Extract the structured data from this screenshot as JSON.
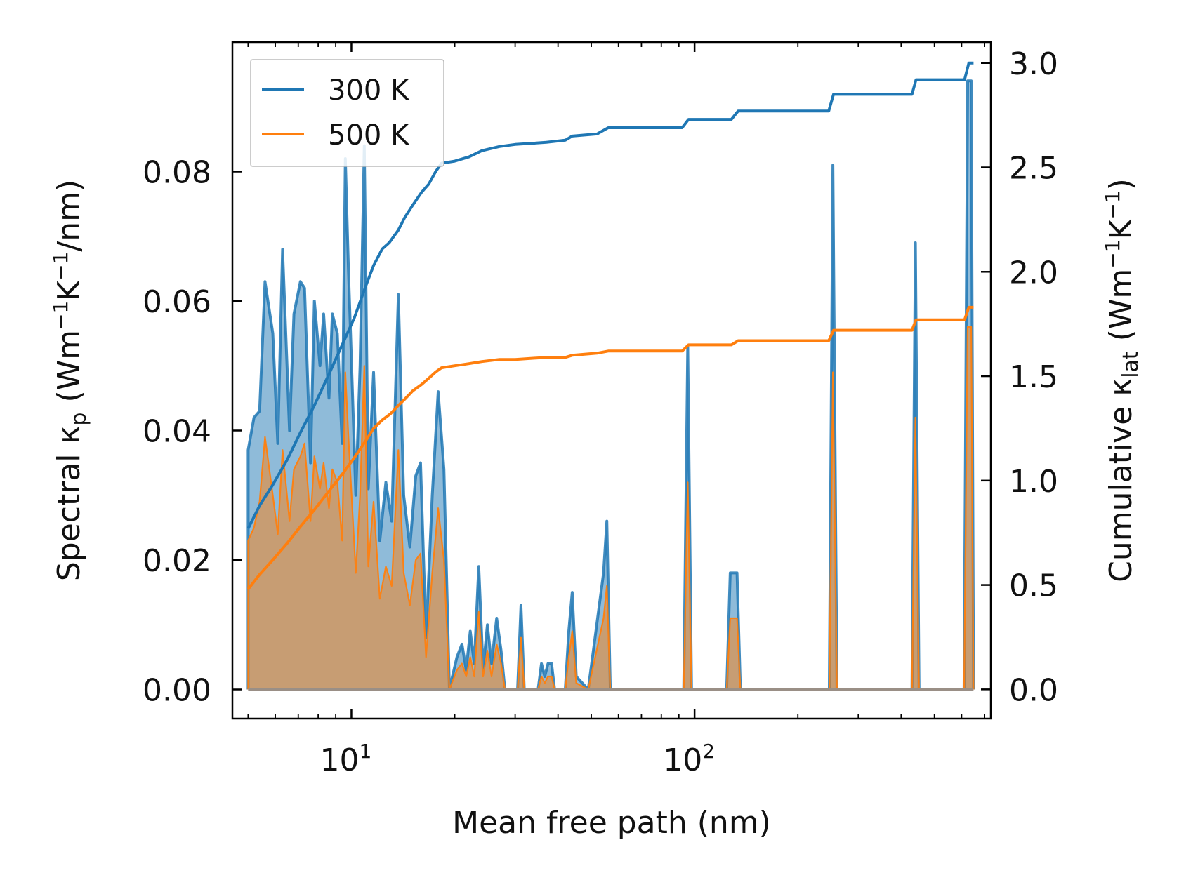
{
  "chart_data": {
    "type": "line",
    "subtype": "spectral-fill-with-cumulative-lines",
    "xlabel": "Mean free path (nm)",
    "xscale": "log",
    "xlim": [
      4.5,
      730
    ],
    "ylim_left": [
      -0.0045,
      0.1
    ],
    "ylim_right": [
      -0.14,
      3.1
    ],
    "xticks": [
      {
        "value": 10,
        "base": "10",
        "exp": "1"
      },
      {
        "value": 100,
        "base": "10",
        "exp": "2"
      }
    ],
    "yticks_left": [
      0.0,
      0.02,
      0.04,
      0.06,
      0.08
    ],
    "yticks_left_labels": [
      "0.00",
      "0.02",
      "0.04",
      "0.06",
      "0.08"
    ],
    "yticks_right": [
      0.0,
      0.5,
      1.0,
      1.5,
      2.0,
      2.5,
      3.0
    ],
    "yticks_right_labels": [
      "0.0",
      "0.5",
      "1.0",
      "1.5",
      "2.0",
      "2.5",
      "3.0"
    ],
    "ylabel_left": {
      "prefix": "Spectral κ",
      "sub": "p",
      "mid": " (Wm",
      "sup1": "−1",
      "mid2": "K",
      "sup2": "−1",
      "suffix": "/nm)"
    },
    "ylabel_right": {
      "prefix": "Cumulative κ",
      "sub": "lat",
      "mid": " (Wm",
      "sup1": "−1",
      "mid2": "K",
      "sup2": "−1",
      "suffix": ")"
    },
    "legend": {
      "position": "top-left",
      "entries": [
        "300 K",
        "500 K"
      ]
    },
    "colors": {
      "300K": "#1f77b4",
      "500K": "#ff7f0e"
    },
    "spectral_series": [
      {
        "name": "300 K",
        "points": [
          [
            5.0,
            0.0
          ],
          [
            5.0,
            0.037
          ],
          [
            5.2,
            0.042
          ],
          [
            5.4,
            0.043
          ],
          [
            5.6,
            0.063
          ],
          [
            5.9,
            0.055
          ],
          [
            6.1,
            0.038
          ],
          [
            6.3,
            0.068
          ],
          [
            6.6,
            0.04
          ],
          [
            6.8,
            0.058
          ],
          [
            7.1,
            0.063
          ],
          [
            7.3,
            0.062
          ],
          [
            7.6,
            0.035
          ],
          [
            7.8,
            0.06
          ],
          [
            8.1,
            0.05
          ],
          [
            8.3,
            0.058
          ],
          [
            8.6,
            0.045
          ],
          [
            8.8,
            0.058
          ],
          [
            9.1,
            0.055
          ],
          [
            9.4,
            0.038
          ],
          [
            9.6,
            0.082
          ],
          [
            9.8,
            0.065
          ],
          [
            10.3,
            0.03
          ],
          [
            10.6,
            0.05
          ],
          [
            10.9,
            0.084
          ],
          [
            11.2,
            0.031
          ],
          [
            11.6,
            0.049
          ],
          [
            12.1,
            0.023
          ],
          [
            12.6,
            0.032
          ],
          [
            13.1,
            0.026
          ],
          [
            13.7,
            0.061
          ],
          [
            14.2,
            0.03
          ],
          [
            14.8,
            0.022
          ],
          [
            15.4,
            0.033
          ],
          [
            15.9,
            0.035
          ],
          [
            16.5,
            0.008
          ],
          [
            17.2,
            0.03
          ],
          [
            17.9,
            0.046
          ],
          [
            18.6,
            0.034
          ],
          [
            19.3,
            0.0
          ],
          [
            20.3,
            0.005
          ],
          [
            21.0,
            0.007
          ],
          [
            21.6,
            0.003
          ],
          [
            22.2,
            0.009
          ],
          [
            22.8,
            0.004
          ],
          [
            23.5,
            0.019
          ],
          [
            24.2,
            0.003
          ],
          [
            24.9,
            0.01
          ],
          [
            25.6,
            0.004
          ],
          [
            26.5,
            0.011
          ],
          [
            27.3,
            0.006
          ],
          [
            28.0,
            0.0
          ],
          [
            30.5,
            0.0
          ],
          [
            31.2,
            0.013
          ],
          [
            31.9,
            0.0
          ],
          [
            35.0,
            0.0
          ],
          [
            35.8,
            0.004
          ],
          [
            36.6,
            0.002
          ],
          [
            37.4,
            0.004
          ],
          [
            38.3,
            0.004
          ],
          [
            39.1,
            0.0
          ],
          [
            42.0,
            0.0
          ],
          [
            43.0,
            0.009
          ],
          [
            44.0,
            0.015
          ],
          [
            45.2,
            0.002
          ],
          [
            49.0,
            0.0
          ],
          [
            54.3,
            0.018
          ],
          [
            55.5,
            0.026
          ],
          [
            56.8,
            0.0
          ],
          [
            93.0,
            0.0
          ],
          [
            95.5,
            0.053
          ],
          [
            98.0,
            0.0
          ],
          [
            124.0,
            0.0
          ],
          [
            127.0,
            0.018
          ],
          [
            130.0,
            0.018
          ],
          [
            133.0,
            0.018
          ],
          [
            136.0,
            0.0
          ],
          [
            247.0,
            0.0
          ],
          [
            253.0,
            0.081
          ],
          [
            260.0,
            0.0
          ],
          [
            430.0,
            0.0
          ],
          [
            440.0,
            0.069
          ],
          [
            451.0,
            0.0
          ],
          [
            610.0,
            0.0
          ],
          [
            625.0,
            0.094
          ],
          [
            640.0,
            0.094
          ],
          [
            650.0,
            0.0
          ]
        ]
      },
      {
        "name": "500 K",
        "points": [
          [
            5.0,
            0.0
          ],
          [
            5.0,
            0.023
          ],
          [
            5.2,
            0.025
          ],
          [
            5.4,
            0.029
          ],
          [
            5.6,
            0.039
          ],
          [
            5.9,
            0.03
          ],
          [
            6.1,
            0.024
          ],
          [
            6.3,
            0.037
          ],
          [
            6.6,
            0.026
          ],
          [
            6.8,
            0.034
          ],
          [
            7.1,
            0.036
          ],
          [
            7.3,
            0.038
          ],
          [
            7.6,
            0.026
          ],
          [
            7.8,
            0.036
          ],
          [
            8.1,
            0.031
          ],
          [
            8.3,
            0.035
          ],
          [
            8.6,
            0.028
          ],
          [
            8.8,
            0.034
          ],
          [
            9.1,
            0.032
          ],
          [
            9.4,
            0.023
          ],
          [
            9.6,
            0.049
          ],
          [
            9.8,
            0.039
          ],
          [
            10.3,
            0.018
          ],
          [
            10.6,
            0.03
          ],
          [
            10.9,
            0.05
          ],
          [
            11.2,
            0.019
          ],
          [
            11.6,
            0.029
          ],
          [
            12.1,
            0.014
          ],
          [
            12.6,
            0.019
          ],
          [
            13.1,
            0.016
          ],
          [
            13.7,
            0.037
          ],
          [
            14.2,
            0.018
          ],
          [
            14.8,
            0.013
          ],
          [
            15.4,
            0.02
          ],
          [
            15.9,
            0.021
          ],
          [
            16.5,
            0.005
          ],
          [
            17.2,
            0.018
          ],
          [
            17.9,
            0.028
          ],
          [
            18.6,
            0.02
          ],
          [
            19.3,
            0.0
          ],
          [
            20.3,
            0.003
          ],
          [
            21.0,
            0.004
          ],
          [
            21.6,
            0.002
          ],
          [
            22.2,
            0.005
          ],
          [
            22.8,
            0.002
          ],
          [
            23.5,
            0.012
          ],
          [
            24.2,
            0.002
          ],
          [
            24.9,
            0.006
          ],
          [
            25.6,
            0.002
          ],
          [
            26.5,
            0.007
          ],
          [
            27.3,
            0.004
          ],
          [
            28.0,
            0.0
          ],
          [
            30.5,
            0.0
          ],
          [
            31.2,
            0.008
          ],
          [
            31.9,
            0.0
          ],
          [
            35.0,
            0.0
          ],
          [
            35.8,
            0.002
          ],
          [
            36.6,
            0.001
          ],
          [
            37.4,
            0.002
          ],
          [
            38.3,
            0.002
          ],
          [
            39.1,
            0.0
          ],
          [
            42.0,
            0.0
          ],
          [
            43.0,
            0.005
          ],
          [
            44.0,
            0.009
          ],
          [
            45.2,
            0.001
          ],
          [
            49.0,
            0.0
          ],
          [
            54.3,
            0.011
          ],
          [
            55.5,
            0.016
          ],
          [
            56.8,
            0.0
          ],
          [
            93.0,
            0.0
          ],
          [
            95.5,
            0.032
          ],
          [
            98.0,
            0.0
          ],
          [
            124.0,
            0.0
          ],
          [
            127.0,
            0.011
          ],
          [
            130.0,
            0.011
          ],
          [
            133.0,
            0.011
          ],
          [
            136.0,
            0.0
          ],
          [
            247.0,
            0.0
          ],
          [
            253.0,
            0.049
          ],
          [
            260.0,
            0.0
          ],
          [
            430.0,
            0.0
          ],
          [
            440.0,
            0.042
          ],
          [
            451.0,
            0.0
          ],
          [
            610.0,
            0.0
          ],
          [
            625.0,
            0.056
          ],
          [
            640.0,
            0.056
          ],
          [
            650.0,
            0.0
          ]
        ]
      }
    ],
    "cumulative_series": [
      {
        "name": "300 K",
        "points": [
          [
            5.0,
            0.77
          ],
          [
            5.4,
            0.88
          ],
          [
            5.9,
            0.98
          ],
          [
            6.5,
            1.1
          ],
          [
            7.1,
            1.23
          ],
          [
            7.8,
            1.36
          ],
          [
            8.6,
            1.51
          ],
          [
            9.4,
            1.65
          ],
          [
            10.2,
            1.78
          ],
          [
            11.0,
            1.93
          ],
          [
            11.6,
            2.03
          ],
          [
            12.3,
            2.11
          ],
          [
            12.9,
            2.14
          ],
          [
            13.7,
            2.2
          ],
          [
            14.3,
            2.26
          ],
          [
            15.1,
            2.32
          ],
          [
            16.0,
            2.38
          ],
          [
            16.8,
            2.42
          ],
          [
            17.6,
            2.48
          ],
          [
            18.3,
            2.52
          ],
          [
            20.0,
            2.53
          ],
          [
            22.0,
            2.55
          ],
          [
            24.0,
            2.58
          ],
          [
            27.0,
            2.6
          ],
          [
            30.0,
            2.61
          ],
          [
            37.0,
            2.62
          ],
          [
            42.0,
            2.63
          ],
          [
            44.0,
            2.65
          ],
          [
            52.0,
            2.66
          ],
          [
            56.0,
            2.69
          ],
          [
            92.0,
            2.69
          ],
          [
            96.0,
            2.73
          ],
          [
            128.0,
            2.73
          ],
          [
            134.0,
            2.77
          ],
          [
            246.0,
            2.77
          ],
          [
            254.0,
            2.85
          ],
          [
            430.0,
            2.85
          ],
          [
            442.0,
            2.92
          ],
          [
            612.0,
            2.92
          ],
          [
            630.0,
            3.0
          ],
          [
            650.0,
            3.0
          ]
        ]
      },
      {
        "name": "500 K",
        "points": [
          [
            5.0,
            0.48
          ],
          [
            5.4,
            0.55
          ],
          [
            5.9,
            0.62
          ],
          [
            6.5,
            0.7
          ],
          [
            7.1,
            0.78
          ],
          [
            7.8,
            0.86
          ],
          [
            8.6,
            0.95
          ],
          [
            9.4,
            1.03
          ],
          [
            10.2,
            1.11
          ],
          [
            11.0,
            1.19
          ],
          [
            11.6,
            1.25
          ],
          [
            12.3,
            1.29
          ],
          [
            13.0,
            1.32
          ],
          [
            13.7,
            1.36
          ],
          [
            14.3,
            1.39
          ],
          [
            15.1,
            1.43
          ],
          [
            16.0,
            1.46
          ],
          [
            16.8,
            1.49
          ],
          [
            17.6,
            1.52
          ],
          [
            18.3,
            1.54
          ],
          [
            20.0,
            1.55
          ],
          [
            22.0,
            1.56
          ],
          [
            24.0,
            1.57
          ],
          [
            27.0,
            1.58
          ],
          [
            30.0,
            1.58
          ],
          [
            37.0,
            1.59
          ],
          [
            42.0,
            1.59
          ],
          [
            44.0,
            1.6
          ],
          [
            52.0,
            1.61
          ],
          [
            56.0,
            1.62
          ],
          [
            92.0,
            1.62
          ],
          [
            96.0,
            1.65
          ],
          [
            128.0,
            1.65
          ],
          [
            134.0,
            1.67
          ],
          [
            246.0,
            1.67
          ],
          [
            254.0,
            1.72
          ],
          [
            430.0,
            1.72
          ],
          [
            442.0,
            1.77
          ],
          [
            612.0,
            1.77
          ],
          [
            630.0,
            1.83
          ],
          [
            650.0,
            1.83
          ]
        ]
      }
    ]
  }
}
